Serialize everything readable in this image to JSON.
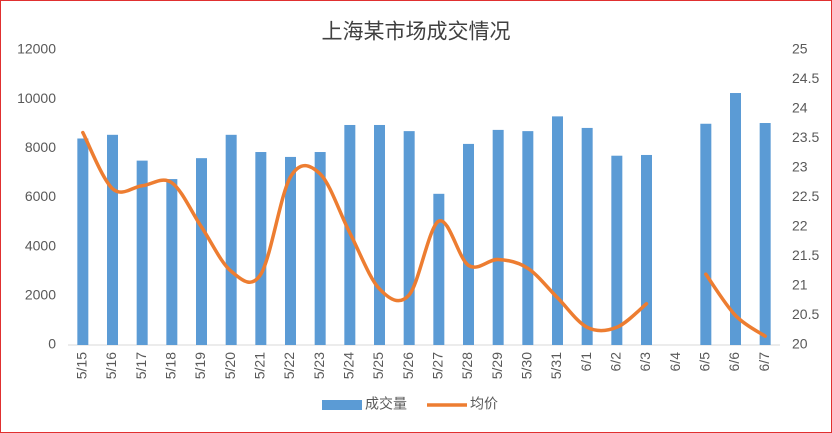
{
  "chart_data": {
    "type": "bar-line",
    "title": "上海某市场成交情况",
    "categories": [
      "5/15",
      "5/16",
      "5/17",
      "5/18",
      "5/19",
      "5/20",
      "5/21",
      "5/22",
      "5/23",
      "5/24",
      "5/25",
      "5/26",
      "5/27",
      "5/28",
      "5/29",
      "5/30",
      "5/31",
      "6/1",
      "6/2",
      "6/3",
      "6/4",
      "6/5",
      "6/6",
      "6/7"
    ],
    "series": [
      {
        "name": "成交量",
        "color": "#5b9bd5",
        "type": "bar",
        "values": [
          8400,
          8550,
          7500,
          6750,
          7600,
          8550,
          7850,
          7650,
          7850,
          8950,
          8950,
          8700,
          6150,
          8180,
          8750,
          8700,
          9300,
          8830,
          7700,
          7730,
          null,
          9000,
          10250,
          9030
        ]
      },
      {
        "name": "均价",
        "color": "#ed7d31",
        "type": "line",
        "axis": "y2",
        "values": [
          23.6,
          22.65,
          22.7,
          22.75,
          22.0,
          21.25,
          21.2,
          22.85,
          22.9,
          21.9,
          20.95,
          20.85,
          22.1,
          21.35,
          21.45,
          21.3,
          20.8,
          20.3,
          20.3,
          20.7,
          null,
          21.2,
          20.5,
          20.15
        ]
      }
    ],
    "ylim": [
      0,
      12000
    ],
    "yticks": [
      0,
      2000,
      4000,
      6000,
      8000,
      10000,
      12000
    ],
    "y2lim": [
      20,
      25
    ],
    "y2ticks": [
      20,
      20.5,
      21,
      21.5,
      22,
      22.5,
      23,
      23.5,
      24,
      24.5,
      25
    ],
    "legend": "bottom"
  }
}
